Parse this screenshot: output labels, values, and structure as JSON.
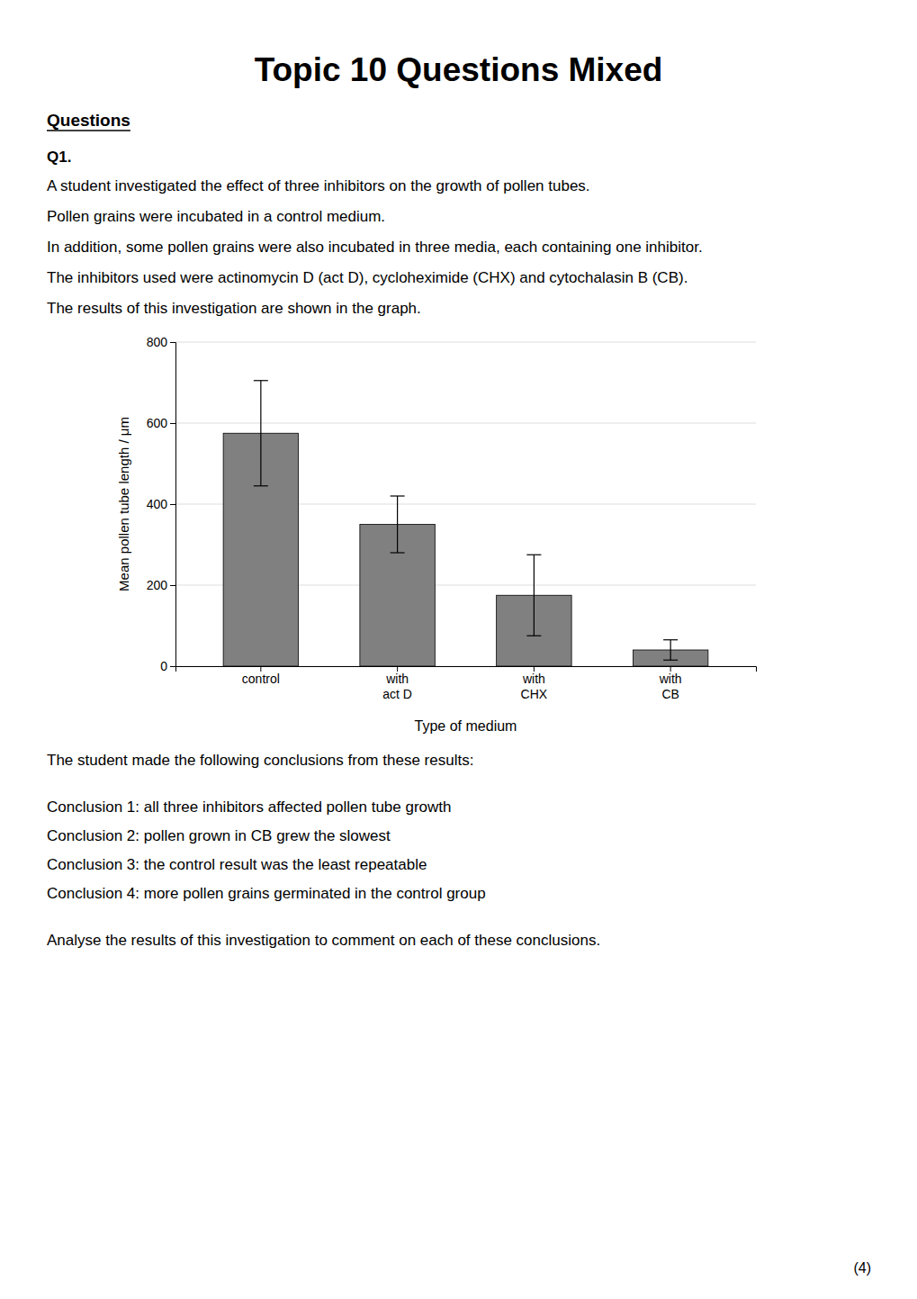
{
  "title": "Topic 10 Questions Mixed",
  "sections_header": "Questions",
  "question_label": "Q1.",
  "paragraphs": [
    "A student investigated the effect of three inhibitors on the growth of pollen tubes.",
    "Pollen grains were incubated in a control medium.",
    "In addition, some pollen grains were also incubated in three media, each containing one inhibitor.",
    "The inhibitors used were actinomycin D (act D), cycloheximide (CHX) and cytochalasin B (CB).",
    "The results of this investigation are shown in the graph."
  ],
  "post_graph_texts": [
    [
      "The student made the following conclusions from these results:"
    ],
    [
      "Conclusion 1: all three inhibitors affected pollen tube growth",
      "Conclusion 2:  pollen grown in CB grew the slowest",
      "Conclusion 3:  the control result was the least repeatable",
      "Conclusion 4:  more pollen grains germinated in the control group"
    ],
    [
      "Analyse the results of this investigation to comment on each of these conclusions."
    ]
  ],
  "marks_text": "(4)",
  "chart_data": {
    "type": "bar",
    "categories": [
      "control",
      "with\nact D",
      "with\nCHX",
      "with\nCB"
    ],
    "values": [
      575,
      350,
      175,
      40
    ],
    "errors": [
      130,
      70,
      100,
      25
    ],
    "color": "#808080",
    "xlabel": "Type of medium",
    "ylabel": "Mean pollen tube length / μm",
    "ylim": [
      0,
      800
    ],
    "yticks": [
      0,
      200,
      400,
      600,
      800
    ],
    "grid": true
  }
}
